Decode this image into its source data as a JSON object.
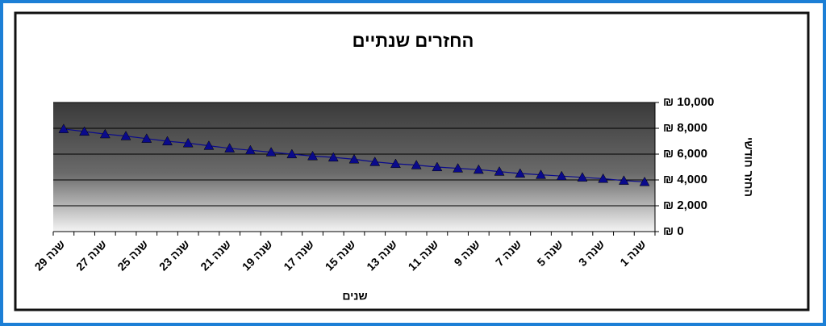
{
  "chart_data": {
    "type": "line",
    "title": "החזרים שנתיים",
    "x_label": "שנים",
    "y_label": "החזר חודשי",
    "categories": [
      "שנה 1",
      null,
      "שנה 3",
      null,
      "שנה 5",
      null,
      "שנה 7",
      null,
      "שנה 9",
      null,
      "שנה 11",
      null,
      "שנה 13",
      null,
      "שנה 15",
      null,
      "שנה 17",
      null,
      "שנה 19",
      null,
      "שנה 21",
      null,
      "שנה 23",
      null,
      "שנה 25",
      null,
      "שנה 27",
      null,
      "שנה 29"
    ],
    "series": [
      {
        "name": "החזר חודשי",
        "color": "#0a0a8c",
        "values": [
          3850,
          3950,
          4100,
          4200,
          4300,
          4400,
          4500,
          4650,
          4800,
          4900,
          5000,
          5150,
          5250,
          5400,
          5600,
          5750,
          5850,
          6000,
          6150,
          6300,
          6450,
          6650,
          6850,
          7000,
          7200,
          7400,
          7550,
          7750,
          7950
        ]
      }
    ],
    "ylim": [
      0,
      10000
    ],
    "yticks": [
      {
        "value": 0,
        "label": "₪ 0"
      },
      {
        "value": 2000,
        "label": "₪ 2,000"
      },
      {
        "value": 4000,
        "label": "₪ 4,000"
      },
      {
        "value": 6000,
        "label": "₪ 6,000"
      },
      {
        "value": 8000,
        "label": "₪ 8,000"
      },
      {
        "value": 10000,
        "label": "₪ 10,000"
      }
    ],
    "grid": true,
    "x_reversed": true,
    "y_axis_side": "right",
    "marker": "triangle"
  }
}
